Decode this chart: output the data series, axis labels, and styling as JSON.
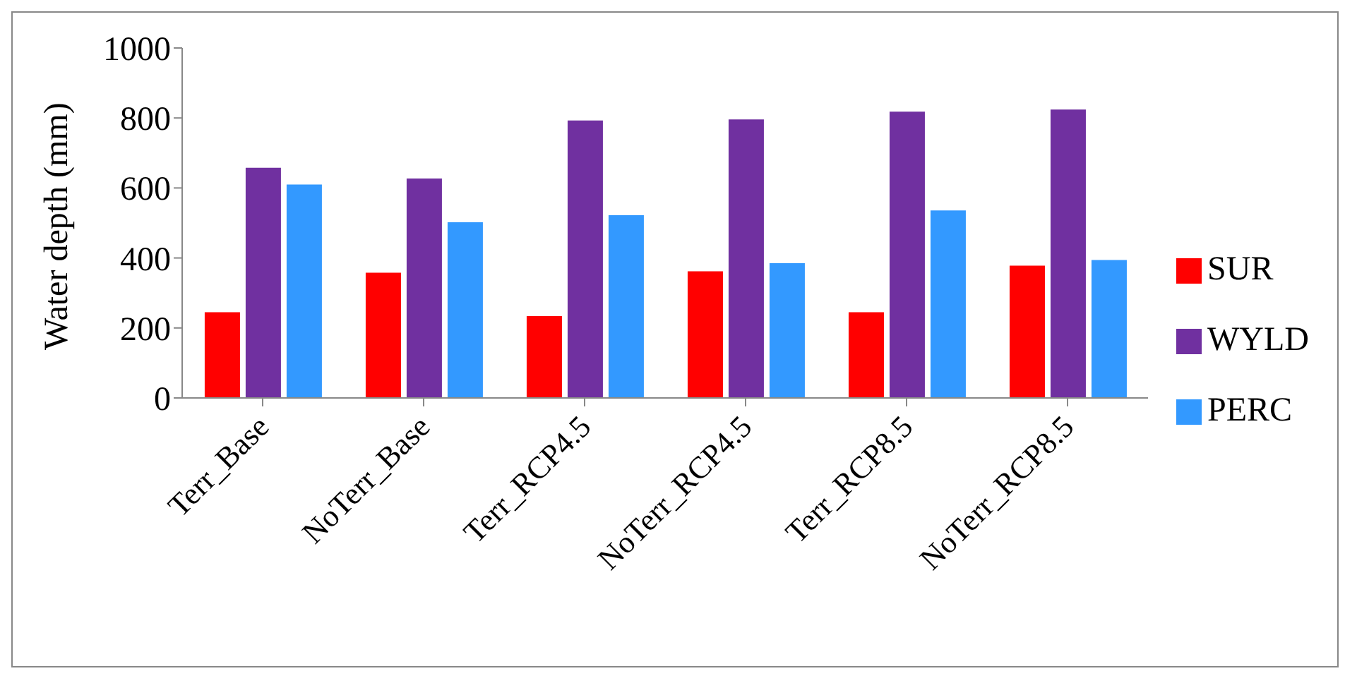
{
  "chart_data": {
    "type": "bar",
    "ylabel": "Water depth (mm)",
    "categories": [
      "Terr_Base",
      "NoTerr_Base",
      "Terr_RCP4.5",
      "NoTerr_RCP4.5",
      "Terr_RCP8.5",
      "NoTerr_RCP8.5"
    ],
    "series": [
      {
        "name": "SUR",
        "color": "#ff0000",
        "values": [
          245,
          358,
          234,
          362,
          245,
          378
        ]
      },
      {
        "name": "WYLD",
        "color": "#7030a0",
        "values": [
          658,
          627,
          793,
          796,
          818,
          824
        ]
      },
      {
        "name": "PERC",
        "color": "#3399ff",
        "values": [
          610,
          502,
          522,
          385,
          536,
          394
        ]
      }
    ],
    "ylim": [
      0,
      1000
    ],
    "yticks": [
      0,
      200,
      400,
      600,
      800,
      1000
    ],
    "grid": false,
    "legend": "right"
  }
}
